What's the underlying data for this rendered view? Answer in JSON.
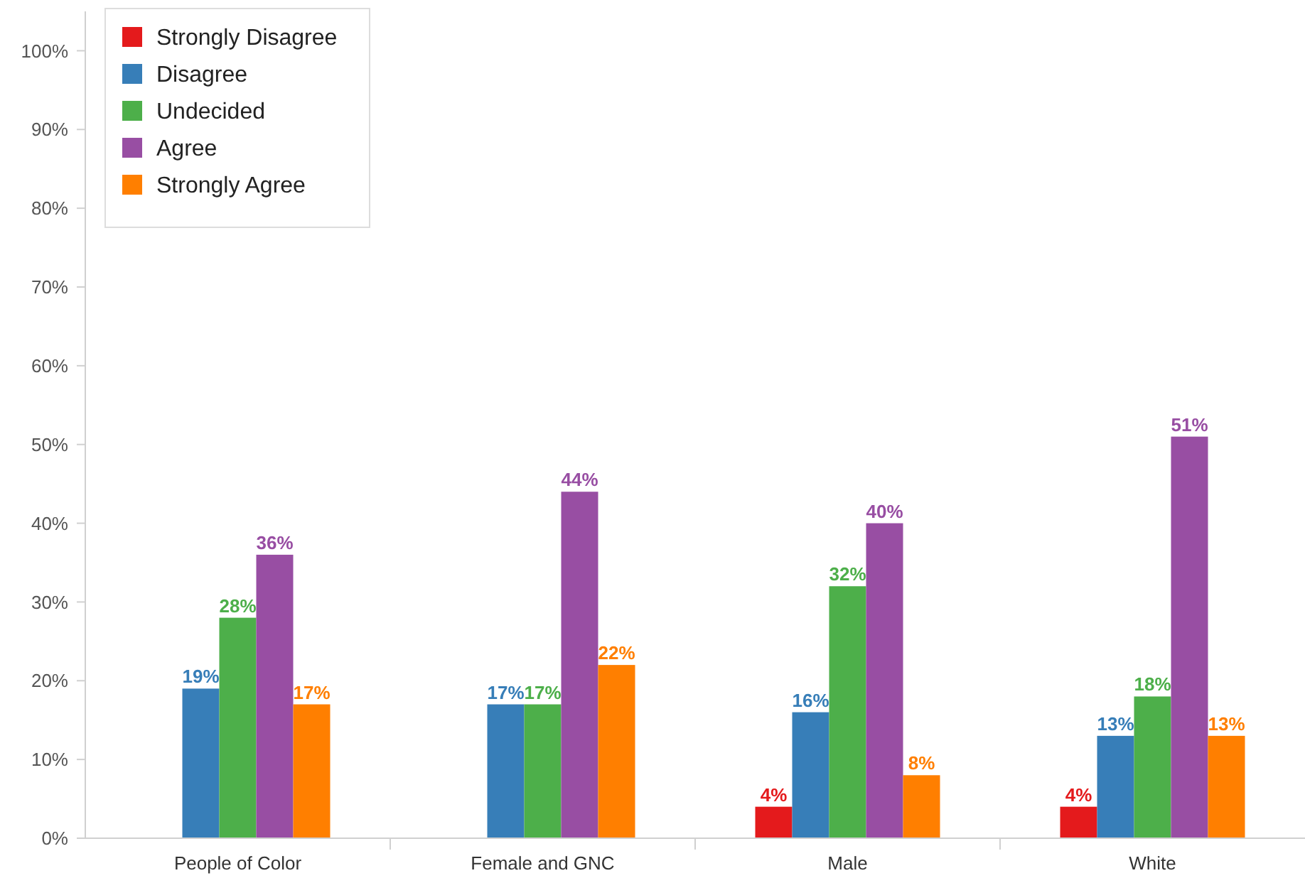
{
  "chart_data": {
    "type": "bar",
    "categories": [
      "People of Color",
      "Female and GNC",
      "Male",
      "White"
    ],
    "series": [
      {
        "name": "Strongly Disagree",
        "color": "#e41a1c",
        "values": [
          null,
          null,
          4,
          4
        ],
        "value_labels": [
          null,
          null,
          "4%",
          "4%"
        ]
      },
      {
        "name": "Disagree",
        "color": "#377eb8",
        "values": [
          19,
          17,
          16,
          13
        ],
        "value_labels": [
          "19%",
          "17%",
          "16%",
          "13%"
        ]
      },
      {
        "name": "Undecided",
        "color": "#4daf4a",
        "values": [
          28,
          17,
          32,
          18
        ],
        "value_labels": [
          "28%",
          "17%",
          "32%",
          "18%"
        ]
      },
      {
        "name": "Agree",
        "color": "#984ea3",
        "values": [
          36,
          44,
          40,
          51
        ],
        "value_labels": [
          "36%",
          "44%",
          "40%",
          "51%"
        ]
      },
      {
        "name": "Strongly Agree",
        "color": "#ff7f00",
        "values": [
          17,
          22,
          8,
          13
        ],
        "value_labels": [
          "17%",
          "22%",
          "8%",
          "13%"
        ]
      }
    ],
    "ylim": [
      0,
      105
    ],
    "yticks": [
      {
        "value": 0,
        "label": "0%"
      },
      {
        "value": 10,
        "label": "10%"
      },
      {
        "value": 20,
        "label": "20%"
      },
      {
        "value": 30,
        "label": "30%"
      },
      {
        "value": 40,
        "label": "40%"
      },
      {
        "value": 50,
        "label": "50%"
      },
      {
        "value": 60,
        "label": "60%"
      },
      {
        "value": 70,
        "label": "70%"
      },
      {
        "value": 80,
        "label": "80%"
      },
      {
        "value": 90,
        "label": "90%"
      },
      {
        "value": 100,
        "label": "100%"
      }
    ],
    "legend": "top left",
    "grid": false
  }
}
